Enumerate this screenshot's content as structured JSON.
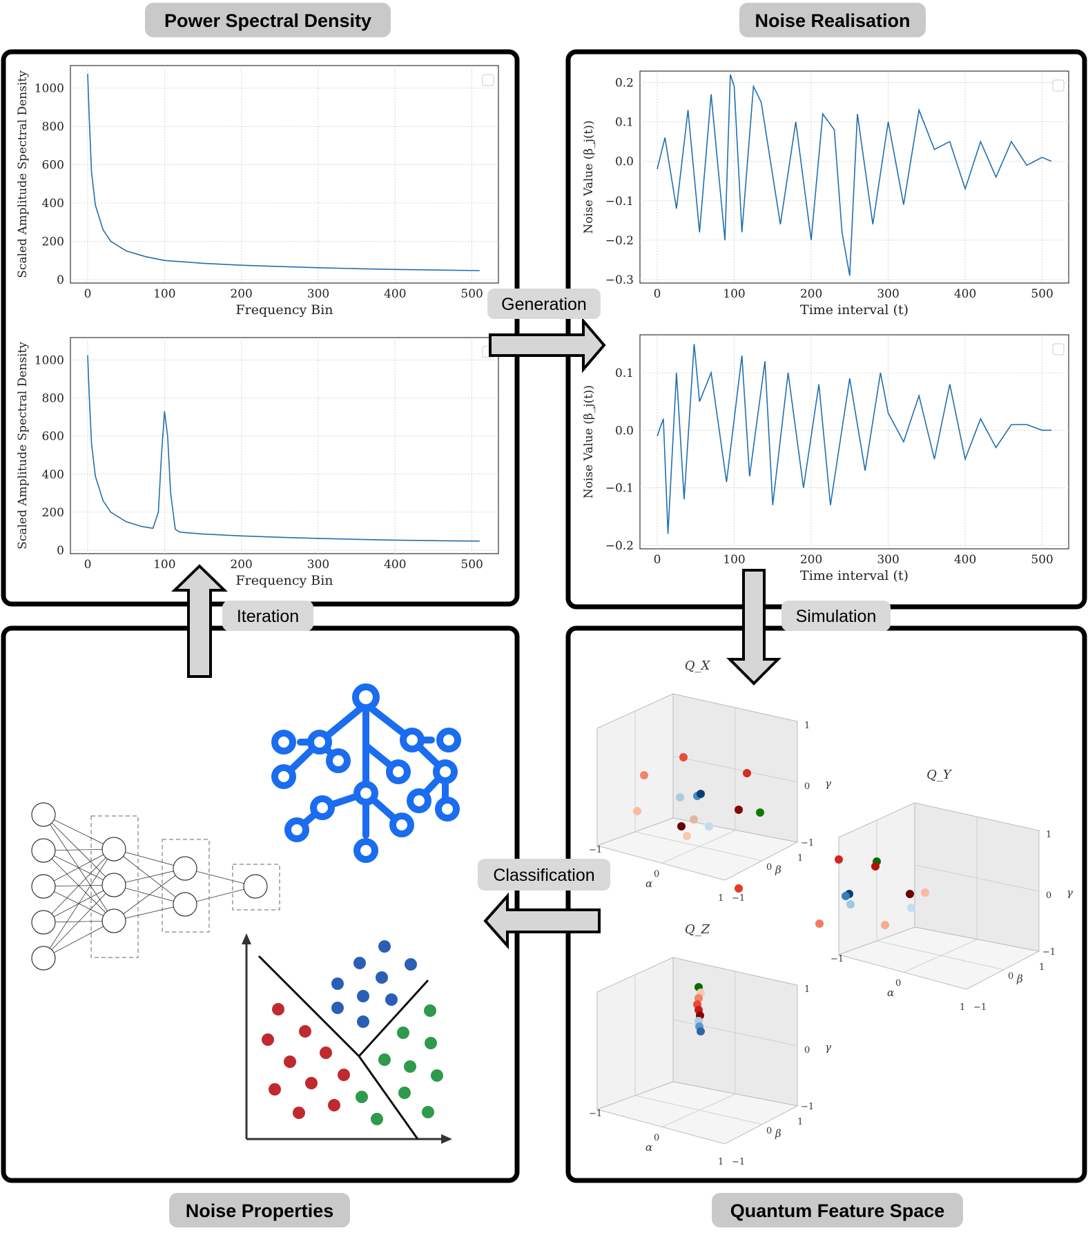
{
  "section_titles": {
    "psd": "Power Spectral Density",
    "noise": "Noise Realisation",
    "properties": "Noise Properties",
    "qfs": "Quantum Feature Space"
  },
  "arrows": {
    "generation": "Generation",
    "simulation": "Simulation",
    "classification": "Classification",
    "iteration": "Iteration"
  },
  "psd_plots": {
    "xlabel": "Frequency Bin",
    "ylabel": "Scaled Amplitude Spectral Density",
    "xticks": [
      "0",
      "100",
      "200",
      "300",
      "400",
      "500"
    ],
    "yticks": [
      "0",
      "200",
      "400",
      "600",
      "800",
      "1000"
    ]
  },
  "noise_plots": {
    "xlabel": "Time interval (t)",
    "ylabel": "Noise Value (β_j(t))",
    "xticks": [
      "0",
      "100",
      "200",
      "300",
      "400",
      "500"
    ],
    "yticks_top": [
      "0.2",
      "0.1",
      "0.0",
      "−0.1",
      "−0.2",
      "−0.3"
    ],
    "yticks_bottom": [
      "0.1",
      "0.0",
      "−0.1",
      "−0.2"
    ]
  },
  "qfs_plots": {
    "titles": [
      "Q_X",
      "Q_Y",
      "Q_Z"
    ],
    "axis_names": [
      "α",
      "β",
      "γ"
    ],
    "axis_ticks": [
      "−1",
      "0",
      "1"
    ]
  },
  "chart_data": [
    {
      "type": "line",
      "xlabel": "Frequency Bin",
      "ylabel": "Scaled Amplitude Spectral Density",
      "xlim": [
        0,
        512
      ],
      "ylim": [
        0,
        1100
      ],
      "x": [
        0,
        2,
        5,
        10,
        20,
        30,
        50,
        75,
        100,
        150,
        200,
        250,
        300,
        350,
        400,
        450,
        510
      ],
      "series": [
        {
          "values": [
            1075,
            850,
            560,
            390,
            260,
            200,
            150,
            120,
            100,
            85,
            75,
            68,
            62,
            57,
            53,
            50,
            47
          ]
        }
      ],
      "grid": true
    },
    {
      "type": "line",
      "xlabel": "Frequency Bin",
      "ylabel": "Scaled Amplitude Spectral Density",
      "xlim": [
        0,
        512
      ],
      "ylim": [
        0,
        1100
      ],
      "x": [
        0,
        2,
        5,
        10,
        20,
        30,
        50,
        70,
        85,
        92,
        96,
        100,
        104,
        108,
        114,
        120,
        150,
        200,
        250,
        300,
        350,
        400,
        450,
        510
      ],
      "series": [
        {
          "values": [
            1025,
            820,
            560,
            390,
            260,
            200,
            150,
            125,
            115,
            200,
            500,
            730,
            600,
            300,
            110,
            95,
            85,
            75,
            68,
            62,
            57,
            53,
            50,
            48
          ]
        }
      ],
      "grid": true
    },
    {
      "type": "line",
      "xlabel": "Time interval (t)",
      "ylabel": "Noise Value (β_j(t))",
      "xlim": [
        0,
        512
      ],
      "ylim": [
        -0.3,
        0.22
      ],
      "x": [
        0,
        10,
        25,
        40,
        55,
        70,
        88,
        95,
        100,
        110,
        125,
        135,
        160,
        180,
        200,
        215,
        230,
        240,
        250,
        260,
        280,
        300,
        320,
        340,
        360,
        380,
        400,
        420,
        440,
        460,
        480,
        500,
        512
      ],
      "series": [
        {
          "values": [
            -0.02,
            0.06,
            -0.12,
            0.13,
            -0.18,
            0.17,
            -0.2,
            0.22,
            0.19,
            -0.18,
            0.19,
            0.15,
            -0.16,
            0.1,
            -0.2,
            0.12,
            0.08,
            -0.18,
            -0.29,
            0.12,
            -0.16,
            0.1,
            -0.11,
            0.13,
            0.03,
            0.05,
            -0.07,
            0.05,
            -0.04,
            0.05,
            -0.01,
            0.01,
            0.0
          ]
        }
      ],
      "grid": true
    },
    {
      "type": "line",
      "xlabel": "Time interval (t)",
      "ylabel": "Noise Value (β_j(t))",
      "xlim": [
        0,
        512
      ],
      "ylim": [
        -0.2,
        0.16
      ],
      "x": [
        0,
        8,
        14,
        25,
        35,
        48,
        55,
        70,
        90,
        110,
        120,
        140,
        150,
        170,
        190,
        210,
        225,
        250,
        270,
        290,
        300,
        320,
        340,
        360,
        380,
        400,
        420,
        440,
        460,
        480,
        500,
        512
      ],
      "series": [
        {
          "values": [
            -0.01,
            0.02,
            -0.18,
            0.1,
            -0.12,
            0.15,
            0.05,
            0.1,
            -0.09,
            0.13,
            -0.08,
            0.12,
            -0.13,
            0.1,
            -0.1,
            0.08,
            -0.13,
            0.09,
            -0.07,
            0.1,
            0.03,
            -0.02,
            0.06,
            -0.05,
            0.08,
            -0.05,
            0.02,
            -0.03,
            0.01,
            0.01,
            0.0,
            0.0
          ]
        }
      ],
      "grid": true
    }
  ]
}
